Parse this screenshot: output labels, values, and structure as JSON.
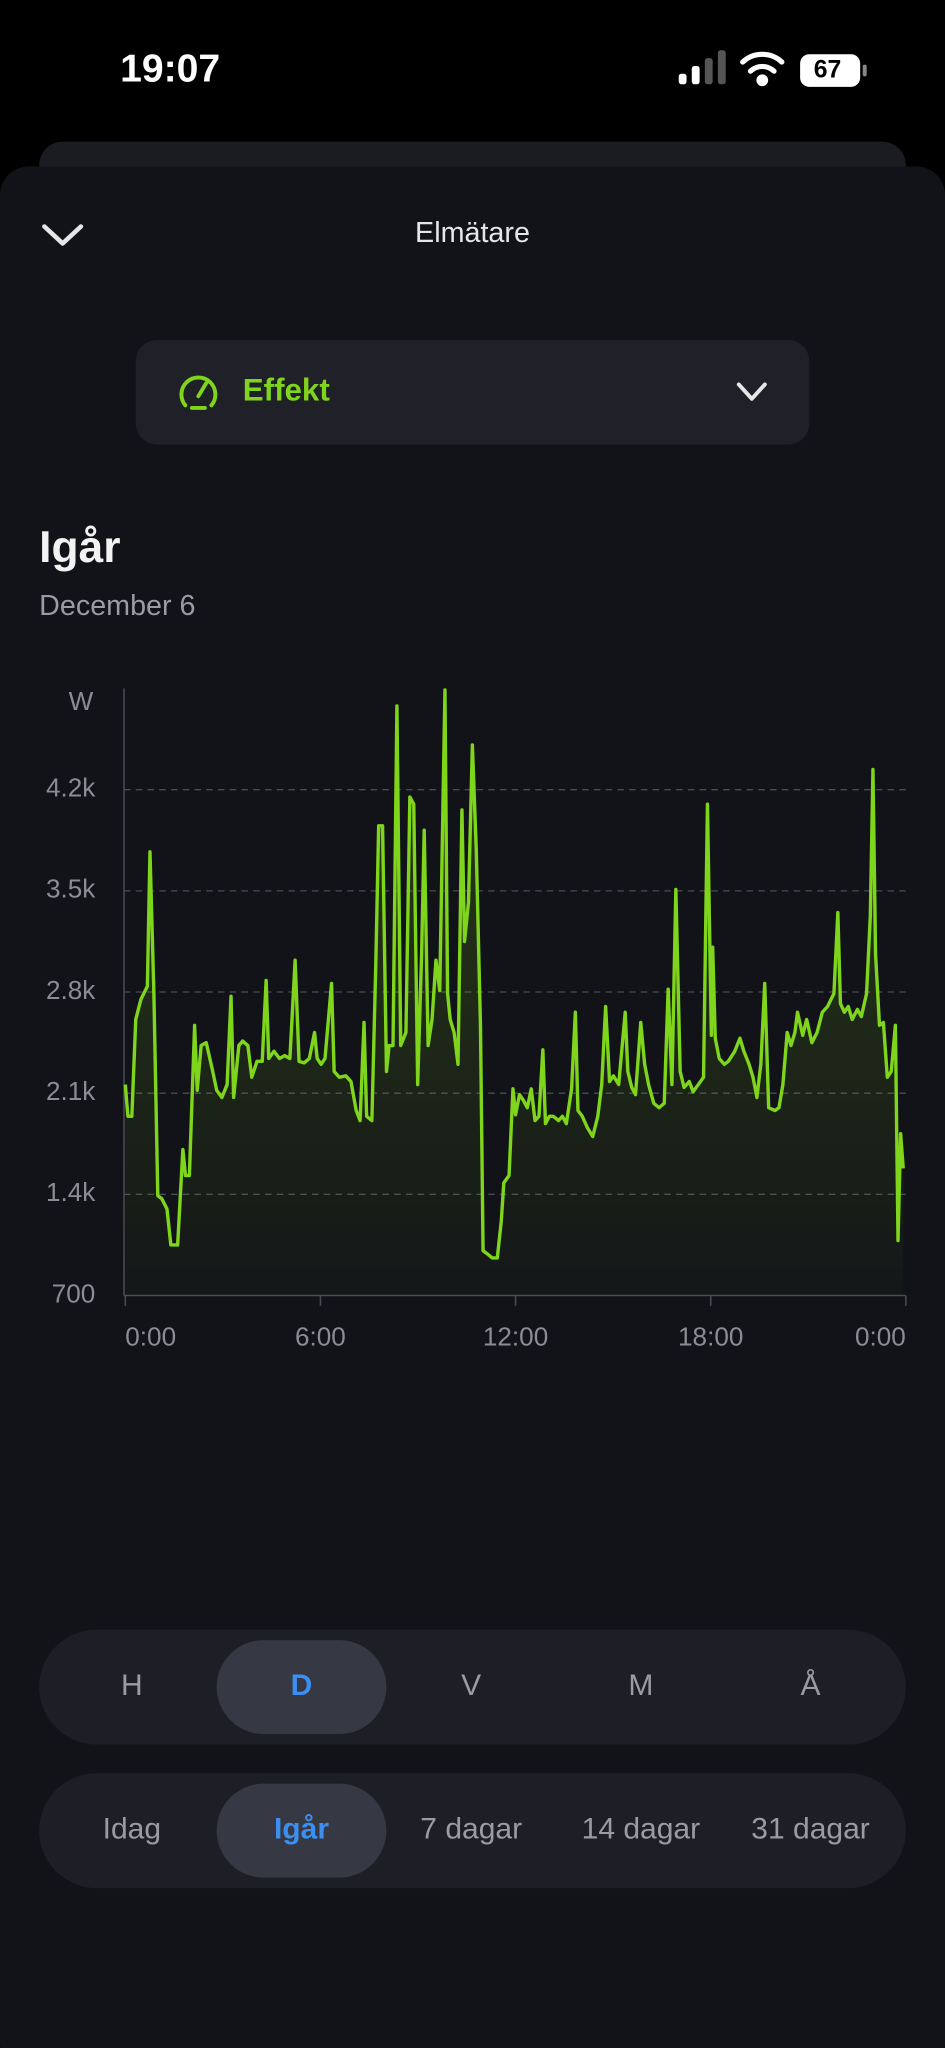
{
  "status_bar": {
    "time": "19:07",
    "battery": "67"
  },
  "header": {
    "title": "Elmätare"
  },
  "metric_selector": {
    "label": "Effekt"
  },
  "chart_data": {
    "type": "line",
    "title": "Igår",
    "subtitle": "December 6",
    "y_label": "W",
    "xlim": [
      0,
      24
    ],
    "xticks": [
      {
        "value": 0,
        "label": "0:00"
      },
      {
        "value": 6,
        "label": "6:00"
      },
      {
        "value": 12,
        "label": "12:00"
      },
      {
        "value": 18,
        "label": "18:00"
      },
      {
        "value": 24,
        "label": "0:00"
      }
    ],
    "ylim": [
      700,
      4900
    ],
    "yticks": [
      700,
      {
        "value": 1400,
        "label": "1.4k"
      },
      {
        "value": 2100,
        "label": "2.1k"
      },
      {
        "value": 2800,
        "label": "2.8k"
      },
      {
        "value": 3500,
        "label": "3.5k"
      },
      {
        "value": 4200,
        "label": "4.2k"
      }
    ],
    "grid": true,
    "series": [
      {
        "color": "#7fd41c",
        "x": [
          0,
          0.08,
          0.2,
          0.32,
          0.48,
          0.68,
          0.76,
          0.88,
          1.0,
          1.12,
          1.28,
          1.4,
          1.61,
          1.77,
          1.85,
          1.97,
          2.13,
          2.21,
          2.33,
          2.49,
          2.69,
          2.81,
          2.97,
          3.13,
          3.25,
          3.33,
          3.49,
          3.61,
          3.77,
          3.89,
          4.05,
          4.21,
          4.33,
          4.41,
          4.57,
          4.74,
          4.9,
          5.06,
          5.22,
          5.34,
          5.5,
          5.66,
          5.82,
          5.9,
          6.02,
          6.14,
          6.34,
          6.42,
          6.58,
          6.78,
          6.94,
          7.1,
          7.22,
          7.34,
          7.42,
          7.58,
          7.7,
          7.79,
          7.91,
          8.03,
          8.11,
          8.23,
          8.35,
          8.47,
          8.63,
          8.75,
          8.87,
          8.99,
          9.11,
          9.19,
          9.31,
          9.43,
          9.55,
          9.67,
          9.83,
          9.91,
          9.99,
          10.11,
          10.23,
          10.35,
          10.43,
          10.55,
          10.67,
          10.79,
          10.92,
          11.0,
          11.12,
          11.28,
          11.44,
          11.56,
          11.64,
          11.8,
          11.92,
          12.0,
          12.12,
          12.24,
          12.36,
          12.48,
          12.6,
          12.72,
          12.84,
          12.92,
          13.04,
          13.16,
          13.32,
          13.44,
          13.56,
          13.72,
          13.84,
          13.92,
          14.05,
          14.21,
          14.37,
          14.53,
          14.65,
          14.77,
          14.89,
          15.01,
          15.17,
          15.37,
          15.45,
          15.57,
          15.69,
          15.85,
          15.97,
          16.09,
          16.25,
          16.41,
          16.57,
          16.69,
          16.81,
          16.93,
          17.06,
          17.18,
          17.34,
          17.46,
          17.62,
          17.78,
          17.9,
          18.02,
          18.06,
          18.14,
          18.26,
          18.42,
          18.54,
          18.74,
          18.9,
          19.02,
          19.18,
          19.3,
          19.42,
          19.54,
          19.66,
          19.78,
          19.98,
          20.1,
          20.22,
          20.35,
          20.47,
          20.59,
          20.67,
          20.83,
          20.95,
          21.11,
          21.27,
          21.43,
          21.59,
          21.79,
          21.91,
          21.99,
          22.11,
          22.23,
          22.35,
          22.51,
          22.63,
          22.79,
          22.91,
          22.99,
          23.07,
          23.19,
          23.31,
          23.43,
          23.55,
          23.68,
          23.76,
          23.84,
          23.92
        ],
        "values": [
          2160,
          1940,
          1940,
          2610,
          2750,
          2840,
          3770,
          2790,
          1390,
          1370,
          1300,
          1050,
          1050,
          1710,
          1530,
          1530,
          2570,
          2120,
          2430,
          2450,
          2250,
          2120,
          2070,
          2160,
          2770,
          2070,
          2430,
          2460,
          2430,
          2210,
          2320,
          2320,
          2880,
          2340,
          2390,
          2340,
          2360,
          2340,
          3020,
          2320,
          2310,
          2340,
          2520,
          2340,
          2300,
          2340,
          2860,
          2250,
          2210,
          2220,
          2180,
          1980,
          1910,
          2590,
          1940,
          1910,
          2990,
          3950,
          3950,
          2250,
          2430,
          2430,
          4780,
          2430,
          2520,
          4150,
          4100,
          2160,
          3060,
          3920,
          2430,
          2610,
          3020,
          2810,
          4890,
          2790,
          2610,
          2520,
          2300,
          4060,
          3150,
          3420,
          4510,
          3780,
          2570,
          1010,
          990,
          960,
          960,
          1210,
          1480,
          1530,
          2130,
          1950,
          2090,
          2050,
          2000,
          2130,
          1910,
          1940,
          2400,
          1890,
          1940,
          1940,
          1910,
          1940,
          1890,
          2130,
          2660,
          1980,
          1940,
          1860,
          1800,
          1940,
          2160,
          2700,
          2180,
          2220,
          2160,
          2660,
          2250,
          2140,
          2090,
          2590,
          2300,
          2160,
          2030,
          2000,
          2030,
          2820,
          2160,
          3510,
          2250,
          2140,
          2180,
          2110,
          2160,
          2210,
          4100,
          2500,
          3110,
          2480,
          2340,
          2300,
          2320,
          2390,
          2480,
          2390,
          2300,
          2210,
          2070,
          2300,
          2860,
          2000,
          1980,
          2000,
          2160,
          2520,
          2430,
          2520,
          2660,
          2500,
          2610,
          2450,
          2520,
          2660,
          2700,
          2790,
          3350,
          2720,
          2660,
          2700,
          2610,
          2680,
          2630,
          2790,
          3330,
          4340,
          3060,
          2570,
          2590,
          2210,
          2250,
          2570,
          1080,
          1820,
          1580
        ]
      }
    ]
  },
  "resolution_tabs": {
    "items": [
      "H",
      "D",
      "V",
      "M",
      "Å"
    ],
    "selected": 1
  },
  "period_tabs": {
    "items": [
      "Idag",
      "Igår",
      "7 dagar",
      "14 dagar",
      "31 dagar"
    ],
    "selected": 1
  }
}
